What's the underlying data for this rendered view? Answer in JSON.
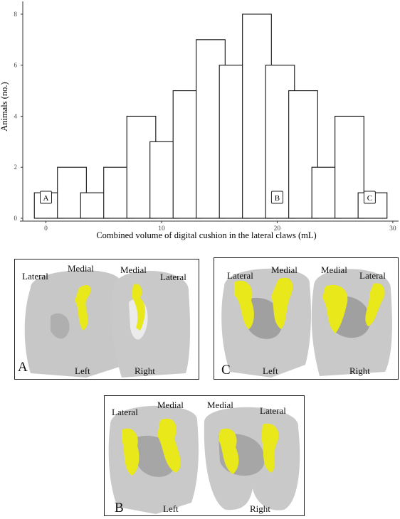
{
  "chart_data": {
    "type": "bar",
    "title": "",
    "xlabel": "Combined volume of digital cushion in the lateral claws (mL)",
    "ylabel": "Animals (no.)",
    "bin_width": 2.5,
    "bins": [
      {
        "start": -1,
        "count": 1
      },
      {
        "start": 1,
        "count": 2
      },
      {
        "start": 3,
        "count": 1
      },
      {
        "start": 5,
        "count": 2
      },
      {
        "start": 7,
        "count": 4
      },
      {
        "start": 9,
        "count": 3
      },
      {
        "start": 11,
        "count": 5
      },
      {
        "start": 13,
        "count": 7
      },
      {
        "start": 15,
        "count": 6
      },
      {
        "start": 17,
        "count": 8
      },
      {
        "start": 19,
        "count": 6
      },
      {
        "start": 21,
        "count": 5
      },
      {
        "start": 23,
        "count": 2
      },
      {
        "start": 25,
        "count": 4
      },
      {
        "start": 27,
        "count": 1
      }
    ],
    "xlim": [
      -2,
      30.5
    ],
    "ylim": [
      0,
      8.5
    ],
    "xticks": [
      0,
      10,
      20,
      30
    ],
    "yticks": [
      0,
      2,
      4,
      6,
      8
    ],
    "markers": [
      {
        "label": "A",
        "x": 0
      },
      {
        "label": "B",
        "x": 20
      },
      {
        "label": "C",
        "x": 28
      }
    ],
    "grid": false
  },
  "panels": {
    "A": {
      "letter": "A",
      "left_claw": "Left",
      "right_claw": "Right",
      "left_lateral": "Lateral",
      "left_medial": "Medial",
      "right_medial": "Medial",
      "right_lateral": "Lateral"
    },
    "C": {
      "letter": "C",
      "left_claw": "Left",
      "right_claw": "Right",
      "left_lateral": "Lateral",
      "left_medial": "Medial",
      "right_medial": "Medial",
      "right_lateral": "Lateral"
    },
    "B": {
      "letter": "B",
      "left_claw": "Left",
      "right_claw": "Right",
      "left_lateral": "Lateral",
      "left_medial": "Medial",
      "right_medial": "Medial",
      "right_lateral": "Lateral"
    }
  },
  "colors": {
    "cushion": "#e8e81a",
    "claw": "#c9c9c9",
    "claw_shadow": "#9a9a9a",
    "bar_fill": "#ffffff",
    "bar_stroke": "#111111"
  }
}
